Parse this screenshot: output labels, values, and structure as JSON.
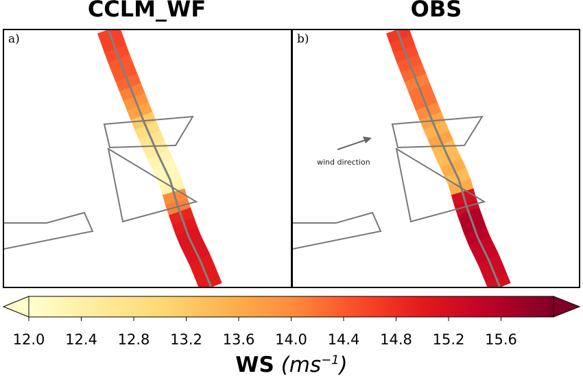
{
  "chart_data": {
    "type": "heatmap",
    "panels": [
      {
        "title": "CCLM_WF",
        "label": "a)",
        "along_track_ws": [
          14.6,
          14.6,
          14.5,
          14.4,
          14.4,
          14.3,
          14.1,
          13.9,
          13.7,
          13.2,
          12.9,
          12.7,
          12.5,
          12.3,
          12.2,
          12.2,
          12.3,
          14.0,
          14.1,
          14.9,
          15.0,
          15.1,
          15.1,
          15.1,
          15.0,
          15.0,
          15.0
        ]
      },
      {
        "title": "OBS",
        "label": "b)",
        "along_track_ws": [
          14.7,
          14.6,
          14.5,
          14.4,
          14.3,
          14.1,
          14.2,
          14.2,
          14.0,
          13.7,
          13.5,
          13.7,
          13.4,
          13.4,
          13.6,
          13.4,
          13.6,
          15.2,
          15.3,
          15.6,
          15.6,
          15.5,
          15.4,
          15.4,
          15.3,
          15.3,
          15.2
        ],
        "annotation": "wind direction"
      }
    ],
    "colorbar": {
      "ticks": [
        "12.0",
        "12.4",
        "12.8",
        "13.2",
        "13.6",
        "14.0",
        "14.4",
        "14.8",
        "15.2",
        "15.6"
      ],
      "range": [
        12.0,
        16.0
      ],
      "extend": "both",
      "colormap": "YlOrRd",
      "label_bold": "WS",
      "label_units": "(ms",
      "label_exp": "−1",
      "label_close": ")"
    }
  },
  "colors": {
    "track_line": "#808080",
    "outline": "#777777",
    "frame": "#000000"
  }
}
